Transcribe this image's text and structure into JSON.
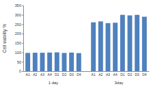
{
  "chart_data": {
    "type": "bar",
    "y_label": "Cell viability %",
    "categories": [
      "A1",
      "A2",
      "A3",
      "A4",
      "D1",
      "D2",
      "D3",
      "D4",
      null,
      "A1",
      "A2",
      "A3",
      "A4",
      "D1",
      "D2",
      "D3",
      "D4"
    ],
    "values": [
      97,
      98,
      98,
      99,
      100,
      97,
      99,
      96,
      null,
      260,
      265,
      256,
      258,
      300,
      297,
      300,
      290
    ],
    "annotations": [
      "1 day",
      "3day"
    ],
    "color": "#4f81bd",
    "ylim": [
      0,
      350
    ],
    "yticks": [
      0,
      50,
      100,
      150,
      200,
      250,
      300,
      350
    ],
    "grid": false
  }
}
